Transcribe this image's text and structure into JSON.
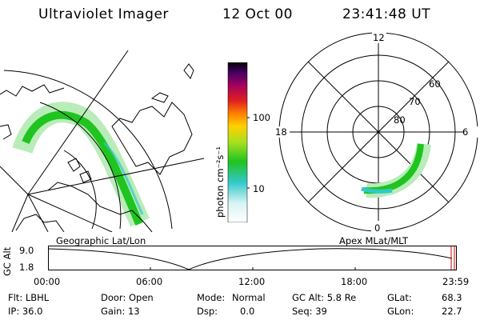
{
  "header": {
    "title": "Ultraviolet Imager",
    "date": "12 Oct 00",
    "time": "23:41:48 UT"
  },
  "colorbar": {
    "unit_label": "photon cm⁻²s⁻¹",
    "ticks": [
      {
        "label": "100",
        "value": 100
      },
      {
        "label": "10",
        "value": 10
      }
    ]
  },
  "polar_plot": {
    "mlt_labels": {
      "top": "12",
      "left": "18",
      "right": "6",
      "bottom": "0"
    },
    "lat_labels": [
      "60",
      "70",
      "80"
    ]
  },
  "panels": {
    "left_caption": "Geographic Lat/Lon",
    "right_caption": "Apex MLat/MLT"
  },
  "timeline": {
    "ylabel": "GC Alt",
    "y_ticks": [
      "9.0",
      "1.8"
    ],
    "x_ticks": [
      "00:00",
      "06:00",
      "12:00",
      "18:00",
      "23:59"
    ]
  },
  "info": {
    "filter": "Flt: LBHL",
    "ip": "IP: 36.0",
    "door": "Door: Open",
    "gain": "Gain: 13",
    "mode_label": "Mode:",
    "mode_value": "Normal",
    "dsp_label": "Dsp:",
    "dsp_value": "0.0",
    "gc_alt": "GC Alt: 5.8 Re",
    "seq": "Seq: 39",
    "glat_label": "GLat:",
    "glat_value": "68.3",
    "glon_label": "GLon:",
    "glon_value": "22.7"
  },
  "colors": {
    "aurora_bright": "#1fc41f",
    "aurora_mid": "#8ee08e",
    "aurora_cyan": "#33c8c8",
    "marker": "#d00000"
  }
}
